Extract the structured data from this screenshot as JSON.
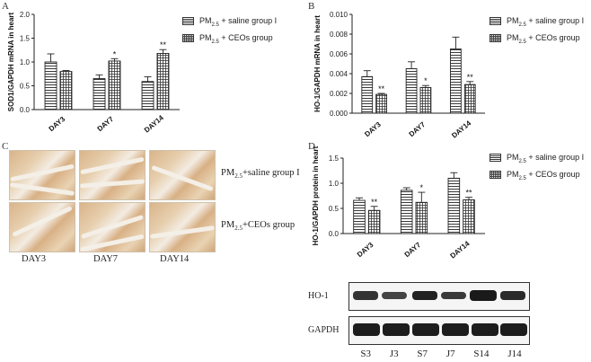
{
  "legend": {
    "saline": "PM2.5 + saline group I",
    "ceos": "PM2.5 + CEOs group",
    "pm": "PM",
    "sub": "2.5",
    "saline_rest": " + saline group I",
    "ceos_rest": " + CEOs group"
  },
  "panels": {
    "A": {
      "letter": "A"
    },
    "B": {
      "letter": "B"
    },
    "C": {
      "letter": "C",
      "row1_pm": "PM",
      "row1_sub": "2.5",
      "row1_rest": "+saline group I",
      "row2_pm": "PM",
      "row2_sub": "2.5",
      "row2_rest": "+CEOs group",
      "cols": [
        "DAY3",
        "DAY7",
        "DAY14"
      ]
    },
    "D": {
      "letter": "D",
      "blot_rows": [
        "HO-1",
        "GAPDH"
      ],
      "lanes": [
        "S3",
        "J3",
        "S7",
        "J7",
        "S14",
        "J14"
      ]
    }
  },
  "chart_data": [
    {
      "type": "bar",
      "panel": "A",
      "categories": [
        "DAY3",
        "DAY7",
        "DAY14"
      ],
      "ylabel": "SOD1/GAPDH mRNA in heart",
      "ylim": [
        0,
        2.0
      ],
      "yticks": [
        "0.0",
        "0.5",
        "1.0",
        "1.5",
        "2.0"
      ],
      "series": [
        {
          "name": "PM2.5 + saline group I",
          "values": [
            1.0,
            0.65,
            0.59
          ],
          "errors": [
            0.17,
            0.08,
            0.1
          ]
        },
        {
          "name": "PM2.5 + CEOs group",
          "values": [
            0.8,
            1.02,
            1.18
          ],
          "errors": [
            0.02,
            0.05,
            0.08
          ]
        }
      ],
      "annotations": [
        {
          "category": "DAY7",
          "series": 1,
          "text": "*"
        },
        {
          "category": "DAY14",
          "series": 1,
          "text": "**"
        }
      ]
    },
    {
      "type": "bar",
      "panel": "B",
      "categories": [
        "DAY3",
        "DAY7",
        "DAY14"
      ],
      "ylabel": "HO-1/GAPDH mRNA in heart",
      "ylim": [
        0,
        0.01
      ],
      "yticks": [
        "0.000",
        "0.002",
        "0.004",
        "0.006",
        "0.008",
        "0.010"
      ],
      "series": [
        {
          "name": "PM2.5 + saline group I",
          "values": [
            0.0037,
            0.0045,
            0.0065
          ],
          "errors": [
            0.0006,
            0.0007,
            0.0012
          ]
        },
        {
          "name": "PM2.5 + CEOs group",
          "values": [
            0.0019,
            0.0026,
            0.0029
          ],
          "errors": [
            0.0001,
            0.0002,
            0.0003
          ]
        }
      ],
      "annotations": [
        {
          "category": "DAY3",
          "series": 1,
          "text": "**"
        },
        {
          "category": "DAY7",
          "series": 1,
          "text": "*"
        },
        {
          "category": "DAY14",
          "series": 1,
          "text": "**"
        }
      ]
    },
    {
      "type": "bar",
      "panel": "D",
      "categories": [
        "DAY3",
        "DAY7",
        "DAY14"
      ],
      "ylabel": "HO-1/GAPDH protein in heart",
      "ylim": [
        0,
        1.5
      ],
      "yticks": [
        "0.0",
        "0.5",
        "1.0",
        "1.5"
      ],
      "series": [
        {
          "name": "PM2.5 + saline group I",
          "values": [
            0.66,
            0.86,
            1.1
          ],
          "errors": [
            0.05,
            0.05,
            0.11
          ]
        },
        {
          "name": "PM2.5 + CEOs group",
          "values": [
            0.46,
            0.62,
            0.67
          ],
          "errors": [
            0.08,
            0.2,
            0.05
          ]
        }
      ],
      "annotations": [
        {
          "category": "DAY3",
          "series": 1,
          "text": "**"
        },
        {
          "category": "DAY7",
          "series": 1,
          "text": "*"
        },
        {
          "category": "DAY14",
          "series": 1,
          "text": "**"
        }
      ]
    }
  ]
}
